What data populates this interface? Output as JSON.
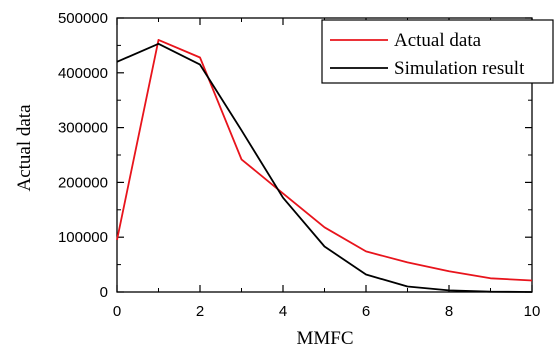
{
  "chart_data": {
    "type": "line",
    "title": "",
    "xlabel": "MMFC",
    "ylabel": "Actual data",
    "xlim": [
      0,
      10
    ],
    "ylim": [
      0,
      500000
    ],
    "x_ticks": [
      0,
      2,
      4,
      6,
      8,
      10
    ],
    "y_ticks": [
      0,
      100000,
      200000,
      300000,
      400000,
      500000
    ],
    "x_tick_labels": [
      "0",
      "2",
      "4",
      "6",
      "8",
      "10"
    ],
    "y_tick_labels": [
      "0",
      "100000",
      "200000",
      "300000",
      "400000",
      "500000"
    ],
    "grid": false,
    "legend_position": "top-right",
    "x": [
      0,
      1,
      2,
      3,
      4,
      5,
      6,
      7,
      8,
      9,
      10
    ],
    "series": [
      {
        "name": "Actual data",
        "color": "#e8141c",
        "values": [
          95000,
          460000,
          428000,
          242000,
          180000,
          118000,
          74000,
          54000,
          38000,
          25000,
          21000
        ]
      },
      {
        "name": "Simulation result",
        "color": "#000000",
        "values": [
          420000,
          453000,
          415000,
          295000,
          172000,
          83000,
          32000,
          10000,
          3000,
          500,
          0
        ]
      }
    ]
  }
}
